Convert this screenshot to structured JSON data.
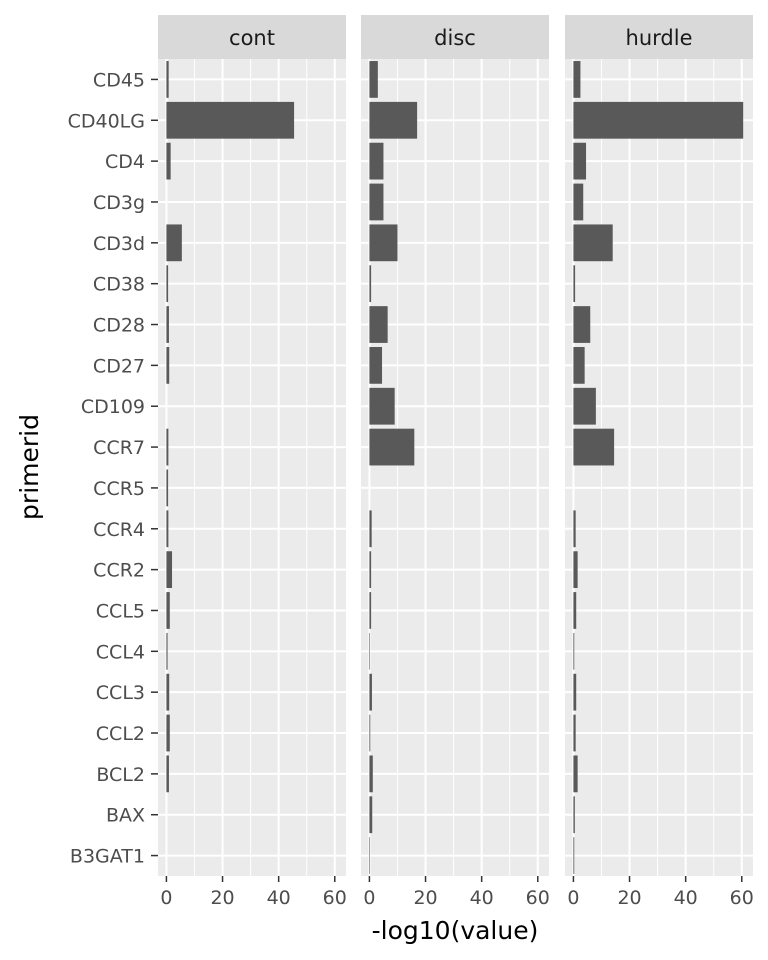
{
  "chart_data": {
    "type": "bar",
    "orientation": "horizontal",
    "facets": [
      "cont",
      "disc",
      "hurdle"
    ],
    "categories": [
      "CD45",
      "CD40LG",
      "CD4",
      "CD3g",
      "CD3d",
      "CD38",
      "CD28",
      "CD27",
      "CD109",
      "CCR7",
      "CCR5",
      "CCR4",
      "CCR2",
      "CCL5",
      "CCL4",
      "CCL3",
      "CCL2",
      "BCL2",
      "BAX",
      "B3GAT1"
    ],
    "series": [
      {
        "facet": "cont",
        "values": [
          0.8,
          45.5,
          1.5,
          0.0,
          5.5,
          0.6,
          0.9,
          1.0,
          0.0,
          0.7,
          0.6,
          0.7,
          2.0,
          1.2,
          0.4,
          1.0,
          1.2,
          0.9,
          0.0,
          0.0
        ]
      },
      {
        "facet": "disc",
        "values": [
          3.0,
          17.0,
          5.0,
          5.0,
          10.0,
          0.6,
          6.5,
          4.5,
          9.0,
          16.0,
          0.0,
          0.8,
          0.6,
          0.6,
          0.2,
          0.9,
          0.3,
          1.2,
          1.0,
          0.2
        ]
      },
      {
        "facet": "hurdle",
        "values": [
          2.5,
          60.5,
          4.5,
          3.5,
          14.0,
          0.6,
          6.0,
          4.0,
          8.0,
          14.5,
          0.0,
          0.8,
          1.5,
          1.0,
          0.3,
          1.0,
          0.8,
          1.5,
          0.5,
          0.3
        ]
      }
    ],
    "xlabel": "-log10(value)",
    "ylabel": "primerid",
    "xlim": [
      -3,
      64
    ],
    "xticks": [
      0,
      20,
      40,
      60
    ],
    "xtick_labels": [
      "0",
      "20",
      "40",
      "60"
    ],
    "grid": true,
    "legend": "none",
    "colors": {
      "bar": "#595959",
      "panel_bg": "#ebebeb",
      "strip_bg": "#d9d9d9",
      "grid": "#ffffff"
    }
  }
}
